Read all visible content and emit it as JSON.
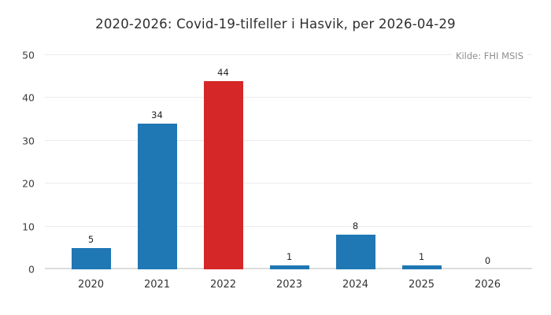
{
  "chart_data": {
    "type": "bar",
    "title": "2020-2026: Covid-19-tilfeller i Hasvik, per 2026-04-29",
    "source": "Kilde: FHI MSIS",
    "categories": [
      "2020",
      "2021",
      "2022",
      "2023",
      "2024",
      "2025",
      "2026"
    ],
    "values": [
      5,
      34,
      44,
      1,
      8,
      1,
      0
    ],
    "bar_colors": [
      "#1f77b4",
      "#1f77b4",
      "#d62728",
      "#1f77b4",
      "#1f77b4",
      "#1f77b4",
      "#1f77b4"
    ],
    "default_color": "#1f77b4",
    "highlight_color": "#d62728",
    "highlight_category": "2022",
    "ylim": [
      0,
      50
    ],
    "yticks": [
      0,
      10,
      20,
      30,
      40,
      50
    ],
    "xlabel": "",
    "ylabel": "",
    "grid": "horizontal",
    "legend": "none",
    "background_color": "#ffffff",
    "gridline_color": "#ececec",
    "baseline_color": "#dcdcdc",
    "title_color": "#2e2e2e",
    "source_color": "#8e8e8e"
  }
}
